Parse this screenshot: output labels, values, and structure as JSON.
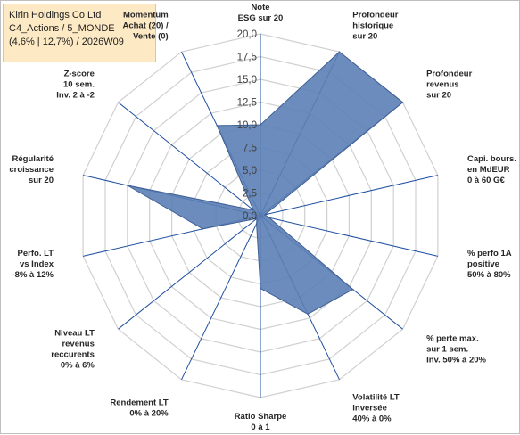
{
  "title_box": {
    "line1": "Kirin Holdings Co Ltd",
    "line2": "C4_Actions / 5_MONDE",
    "line3": "(4,6% | 12,7%) / 2026W09"
  },
  "chart_data": {
    "type": "radar",
    "axes": [
      [
        "Note",
        "ESG sur 20"
      ],
      [
        "Profondeur",
        "historique",
        "sur 20"
      ],
      [
        "Profondeur",
        "revenus",
        "sur 20"
      ],
      [
        "Capi. bours.",
        "en MdEUR",
        "0 à 60 G€"
      ],
      [
        "% perfo 1A",
        "positive",
        "50% à 80%"
      ],
      [
        "% perte max.",
        "sur 1 sem.",
        "Inv. 50% à 20%"
      ],
      [
        "Volatilité LT",
        "inversée",
        "40% à 0%"
      ],
      [
        "Ratio Sharpe",
        "0 à 1"
      ],
      [
        "Rendement LT",
        "0% à 20%"
      ],
      [
        "Niveau LT",
        "revenus",
        "reccurents",
        "0% à 6%"
      ],
      [
        "Perfo. LT",
        "vs Index",
        "-8% à 12%"
      ],
      [
        "Régularité",
        "croissance",
        "sur 20"
      ],
      [
        "Z-score",
        "10 sem.",
        "Inv. 2 à -2"
      ],
      [
        "Momentum",
        "Achat (20) /",
        "Vente (0)"
      ]
    ],
    "values": [
      10.0,
      20.0,
      20.0,
      0.5,
      1.0,
      13.0,
      12.0,
      8.0,
      1.0,
      0.5,
      6.5,
      15.0,
      1.0,
      11.0
    ],
    "rlim": [
      0,
      20
    ],
    "ticks": [
      "0,0",
      "2,5",
      "5,0",
      "7,5",
      "10,0",
      "12,5",
      "15,0",
      "17,5",
      "20,0"
    ],
    "colors": {
      "fill": "#5b7fb5",
      "stroke": "#3f5f94",
      "grid": "#d0d0d0",
      "spoke": "#1f4fa0"
    }
  }
}
